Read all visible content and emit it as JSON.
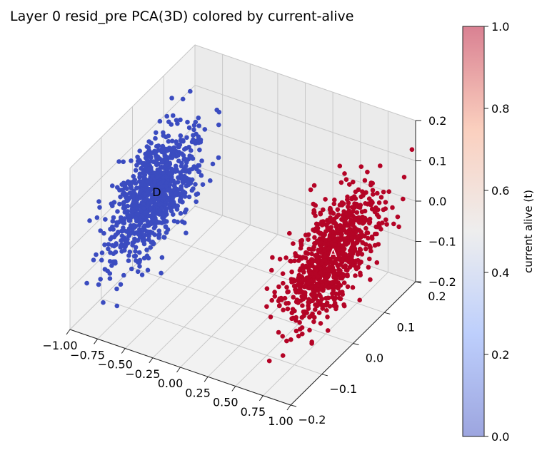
{
  "chart_data": {
    "type": "scatter",
    "projection": "3d",
    "title": "Layer 0 resid_pre PCA(3D) colored by current-alive",
    "xlabel": "",
    "ylabel": "",
    "zlabel": "",
    "grid": true,
    "xlim": [
      -1.0,
      1.0
    ],
    "ylim": [
      -0.2,
      0.2
    ],
    "zlim": [
      -0.2,
      0.2
    ],
    "x_ticks": [
      "−1.00",
      "−0.75",
      "−0.50",
      "−0.25",
      "0.00",
      "0.25",
      "0.50",
      "0.75",
      "1.00"
    ],
    "y_ticks": [
      "−0.2",
      "−0.1",
      "0.0",
      "0.1",
      "0.2"
    ],
    "z_ticks": [
      "−0.2",
      "−0.1",
      "0.0",
      "0.1",
      "0.2"
    ],
    "clusters": [
      {
        "label": "D",
        "center": [
          -0.8,
          0.0,
          0.0
        ],
        "spread": [
          0.06,
          0.07,
          0.06
        ],
        "color_value": 0.0,
        "point_count": 900
      },
      {
        "label": "A",
        "center": [
          0.8,
          0.0,
          0.0
        ],
        "spread": [
          0.06,
          0.07,
          0.06
        ],
        "color_value": 1.0,
        "point_count": 900
      }
    ],
    "colorbar": {
      "label": "current alive (t)",
      "colormap": "coolwarm",
      "range": [
        0.0,
        1.0
      ],
      "ticks": [
        "0.0",
        "0.2",
        "0.4",
        "0.6",
        "0.8",
        "1.0"
      ]
    },
    "colors": {
      "low": "#3b4cc0",
      "high": "#b40426"
    }
  }
}
